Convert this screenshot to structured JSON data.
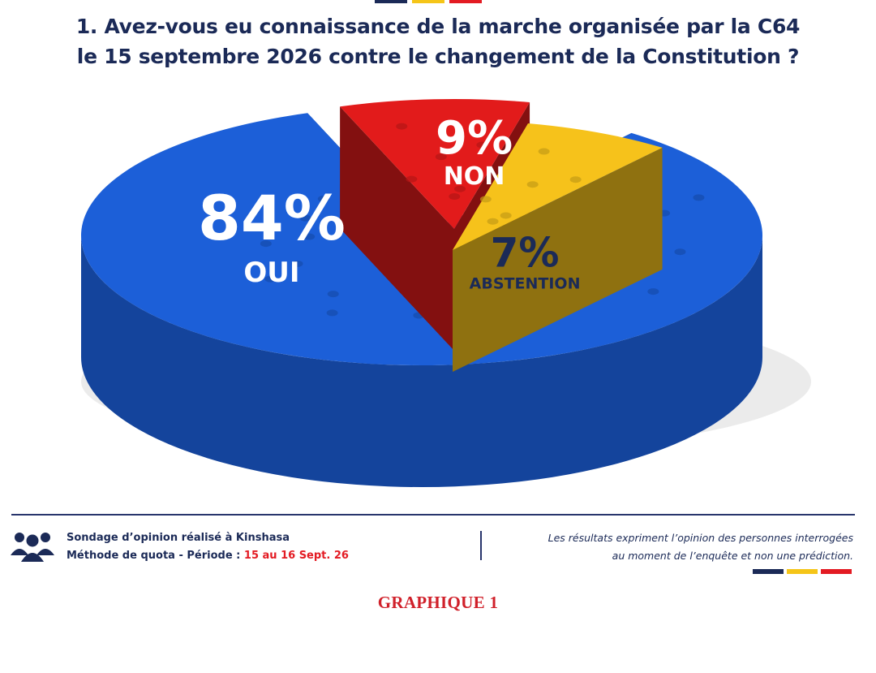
{
  "chart_data": {
    "type": "pie",
    "title": "1.  Avez-vous eu connaissance de la marche organisée par la C64",
    "subtitle": "le 15 septembre 2026 contre le changement de la Constitution ?",
    "slices": [
      {
        "label": "OUI",
        "value": 84,
        "display": "84%",
        "color": "#1c5fd8"
      },
      {
        "label": "NON",
        "value": 9,
        "display": "9%",
        "color": "#e21b1b"
      },
      {
        "label": "ABSTENTION",
        "value": 7,
        "display": "7%",
        "color": "#f6c21b"
      }
    ]
  },
  "footer": {
    "survey_line1": "Sondage d’opinion réalisé à Kinshasa",
    "survey_line2": "Méthode de quota - Période :",
    "survey_period": "15 au 16 Sept. 26",
    "disclaimer_line1": "Les résultats expriment l’opinion des personnes interrogées",
    "disclaimer_line2": "au moment de l’enquête et non une prédiction.",
    "caption": "GRAPHIQUE 1",
    "icon": "people-icon"
  },
  "colors": {
    "navy": "#1b2a57",
    "red": "#e31b23",
    "yellow": "#f5c518"
  }
}
